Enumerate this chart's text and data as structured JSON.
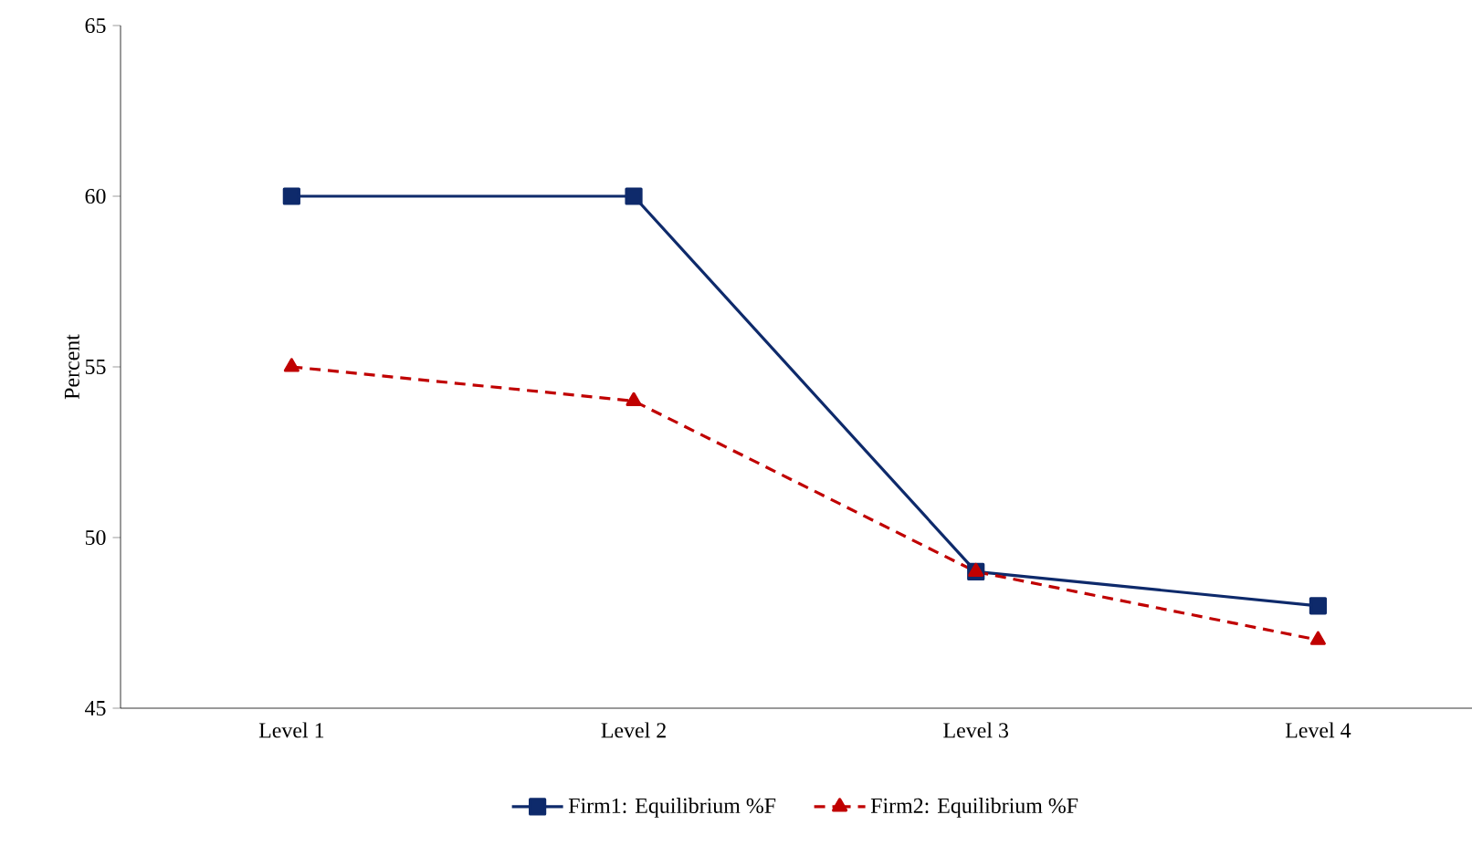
{
  "chart_data": {
    "type": "line",
    "ylabel": "Percent",
    "categories": [
      "Level 1",
      "Level 2",
      "Level 3",
      "Level 4"
    ],
    "series": [
      {
        "name": "Firm1: Equilibrium %F",
        "color": "#0e2a6b",
        "values": [
          60,
          60,
          49,
          48
        ],
        "marker": "square",
        "line_style": "solid"
      },
      {
        "name": "Firm2: Equilibrium %F",
        "color": "#c00000",
        "values": [
          55,
          54,
          49,
          47
        ],
        "marker": "triangle",
        "line_style": "dashed"
      }
    ],
    "ylim": [
      45,
      65
    ],
    "yticks": [
      45,
      50,
      55,
      60,
      65
    ],
    "grid": false,
    "legend": "bottom"
  }
}
